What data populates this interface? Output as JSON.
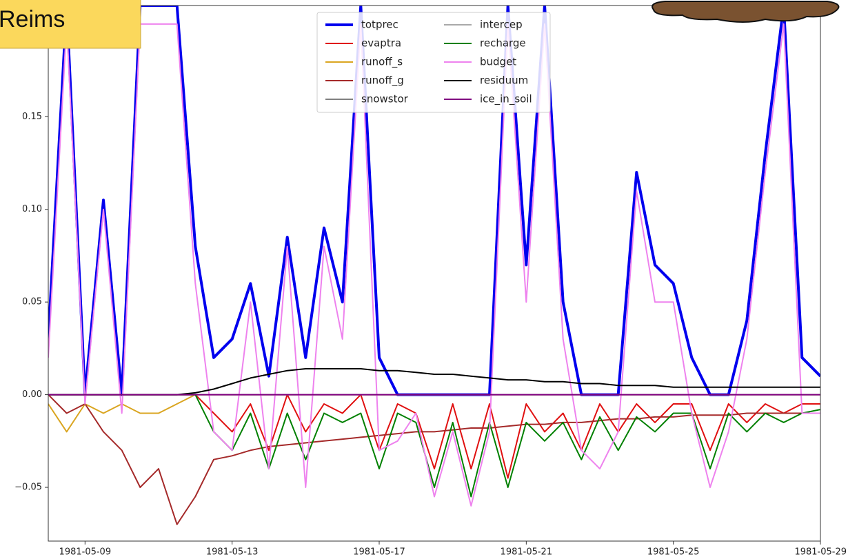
{
  "chart_data": {
    "type": "line",
    "station": "Reims",
    "x": [
      8,
      8.5,
      9,
      9.5,
      10,
      10.5,
      11,
      11.5,
      12,
      12.5,
      13,
      13.5,
      14,
      14.5,
      15,
      15.5,
      16,
      16.5,
      17,
      17.5,
      18,
      18.5,
      19,
      19.5,
      20,
      20.5,
      21,
      21.5,
      22,
      22.5,
      23,
      23.5,
      24,
      24.5,
      25,
      25.5,
      26,
      26.5,
      27,
      27.5,
      28,
      28.5,
      29
    ],
    "xlim": [
      8,
      29
    ],
    "xticks": [
      {
        "value": 9,
        "label": "1981-05-09"
      },
      {
        "value": 13,
        "label": "1981-05-13"
      },
      {
        "value": 17,
        "label": "1981-05-17"
      },
      {
        "value": 21,
        "label": "1981-05-21"
      },
      {
        "value": 25,
        "label": "1981-05-25"
      },
      {
        "value": 29,
        "label": "1981-05-29"
      }
    ],
    "ylim": [
      -0.079,
      0.21
    ],
    "yticks": [
      {
        "value": -0.05,
        "label": "−0.05"
      },
      {
        "value": 0,
        "label": "0.00"
      },
      0.05,
      {
        "value": 0.1,
        "label": "0.10"
      },
      0.15
    ],
    "grid": false,
    "legend": "upper center",
    "series": [
      {
        "name": "totprec",
        "color": "#0000ee",
        "linewidth": 4,
        "values": [
          0.03,
          0.21,
          0,
          0.105,
          0,
          0.21,
          0.21,
          0.21,
          0.08,
          0.02,
          0.03,
          0.06,
          0.01,
          0.085,
          0.02,
          0.09,
          0.05,
          0.21,
          0.02,
          0,
          0,
          0,
          0,
          0,
          0,
          0.21,
          0.07,
          0.21,
          0.05,
          0,
          0,
          0,
          0.12,
          0.07,
          0.06,
          0.02,
          0,
          0,
          0.04,
          0.13,
          0.21,
          0.02,
          0.01
        ]
      },
      {
        "name": "evaptra",
        "color": "#e01010",
        "linewidth": 2,
        "values": [
          0,
          0,
          0,
          0,
          0,
          0,
          0,
          0,
          0,
          -0.01,
          -0.02,
          -0.005,
          -0.03,
          0,
          -0.02,
          -0.005,
          -0.01,
          0,
          -0.03,
          -0.005,
          -0.01,
          -0.04,
          -0.005,
          -0.04,
          -0.005,
          -0.045,
          -0.005,
          -0.02,
          -0.01,
          -0.03,
          -0.005,
          -0.02,
          -0.005,
          -0.015,
          -0.005,
          -0.005,
          -0.03,
          -0.005,
          -0.015,
          -0.005,
          -0.01,
          -0.005,
          -0.005
        ]
      },
      {
        "name": "runoff_s",
        "color": "#daa520",
        "linewidth": 2,
        "values": [
          -0.005,
          -0.02,
          -0.005,
          -0.01,
          -0.005,
          -0.01,
          -0.01,
          -0.005,
          0,
          0,
          0,
          0,
          0,
          0,
          0,
          0,
          0,
          0,
          0,
          0,
          0,
          0,
          0,
          0,
          0,
          0,
          0,
          0,
          0,
          0,
          0,
          0,
          0,
          0,
          0,
          0,
          0,
          0,
          0,
          0,
          0,
          0,
          0
        ]
      },
      {
        "name": "runoff_g",
        "color": "#a52a2a",
        "linewidth": 2,
        "values": [
          0,
          -0.01,
          -0.005,
          -0.02,
          -0.03,
          -0.05,
          -0.04,
          -0.07,
          -0.055,
          -0.035,
          -0.033,
          -0.03,
          -0.028,
          -0.027,
          -0.026,
          -0.025,
          -0.024,
          -0.023,
          -0.022,
          -0.021,
          -0.02,
          -0.02,
          -0.019,
          -0.018,
          -0.018,
          -0.017,
          -0.016,
          -0.016,
          -0.015,
          -0.015,
          -0.014,
          -0.013,
          -0.013,
          -0.012,
          -0.012,
          -0.011,
          -0.011,
          -0.011,
          -0.01,
          -0.01,
          -0.01,
          -0.01,
          -0.01
        ]
      },
      {
        "name": "snowstor",
        "color": "#808080",
        "linewidth": 2,
        "values": [
          0,
          0,
          0,
          0,
          0,
          0,
          0,
          0,
          0,
          0,
          0,
          0,
          0,
          0,
          0,
          0,
          0,
          0,
          0,
          0,
          0,
          0,
          0,
          0,
          0,
          0,
          0,
          0,
          0,
          0,
          0,
          0,
          0,
          0,
          0,
          0,
          0,
          0,
          0,
          0,
          0,
          0,
          0
        ]
      },
      {
        "name": "intercep",
        "color": "#a9a9a9",
        "linewidth": 2,
        "values": [
          0,
          0,
          0,
          0,
          0,
          0,
          0,
          0,
          0,
          0,
          0,
          0,
          0,
          0,
          0,
          0,
          0,
          0,
          0,
          0,
          0,
          0,
          0,
          0,
          0,
          0,
          0,
          0,
          0,
          0,
          0,
          0,
          0,
          0,
          0,
          0,
          0,
          0,
          0,
          0,
          0,
          0,
          0
        ]
      },
      {
        "name": "recharge",
        "color": "#008000",
        "linewidth": 2,
        "values": [
          0,
          0,
          0,
          0,
          0,
          0,
          0,
          0,
          0,
          -0.02,
          -0.03,
          -0.01,
          -0.04,
          -0.01,
          -0.035,
          -0.01,
          -0.015,
          -0.01,
          -0.04,
          -0.01,
          -0.015,
          -0.05,
          -0.015,
          -0.055,
          -0.015,
          -0.05,
          -0.015,
          -0.025,
          -0.015,
          -0.035,
          -0.012,
          -0.03,
          -0.012,
          -0.02,
          -0.01,
          -0.01,
          -0.04,
          -0.01,
          -0.02,
          -0.01,
          -0.015,
          -0.01,
          -0.008
        ]
      },
      {
        "name": "budget",
        "color": "#ee82ee",
        "linewidth": 2,
        "values": [
          0.02,
          0.2,
          -0.005,
          0.1,
          -0.01,
          0.2,
          0.2,
          0.2,
          0.06,
          -0.02,
          -0.03,
          0.05,
          -0.04,
          0.08,
          -0.05,
          0.08,
          0.03,
          0.2,
          -0.03,
          -0.025,
          -0.01,
          -0.055,
          -0.02,
          -0.06,
          -0.02,
          0.2,
          0.05,
          0.2,
          0.03,
          -0.03,
          -0.04,
          -0.02,
          0.11,
          0.05,
          0.05,
          -0.01,
          -0.05,
          -0.02,
          0.03,
          0.12,
          0.2,
          -0.01,
          -0.01
        ]
      },
      {
        "name": "residuum",
        "color": "#000000",
        "linewidth": 2,
        "values": [
          0,
          0,
          0,
          0,
          0,
          0,
          0,
          0,
          0.001,
          0.003,
          0.006,
          0.009,
          0.011,
          0.013,
          0.014,
          0.014,
          0.014,
          0.014,
          0.013,
          0.013,
          0.012,
          0.011,
          0.011,
          0.01,
          0.009,
          0.008,
          0.008,
          0.007,
          0.007,
          0.006,
          0.006,
          0.005,
          0.005,
          0.005,
          0.004,
          0.004,
          0.004,
          0.004,
          0.004,
          0.004,
          0.004,
          0.004,
          0.004
        ]
      },
      {
        "name": "ice_in_soil",
        "color": "#800080",
        "linewidth": 2,
        "values": [
          0,
          0,
          0,
          0,
          0,
          0,
          0,
          0,
          0,
          0,
          0,
          0,
          0,
          0,
          0,
          0,
          0,
          0,
          0,
          0,
          0,
          0,
          0,
          0,
          0,
          0,
          0,
          0,
          0,
          0,
          0,
          0,
          0,
          0,
          0,
          0,
          0,
          0,
          0,
          0,
          0,
          0,
          0
        ]
      }
    ]
  }
}
